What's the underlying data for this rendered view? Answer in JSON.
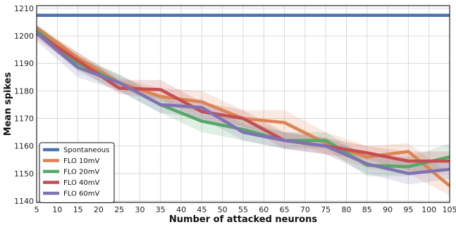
{
  "chart_data": {
    "type": "line",
    "title": "",
    "xlabel": "Number of attacked neurons",
    "ylabel": "Mean spikes",
    "x": [
      5,
      15,
      25,
      35,
      45,
      55,
      65,
      75,
      85,
      95,
      105
    ],
    "xticks": [
      5,
      10,
      15,
      20,
      25,
      30,
      35,
      40,
      45,
      50,
      55,
      60,
      65,
      70,
      75,
      80,
      85,
      90,
      95,
      100,
      105
    ],
    "yticks": [
      1140,
      1150,
      1160,
      1170,
      1180,
      1190,
      1200,
      1210
    ],
    "xlim": [
      5,
      105
    ],
    "ylim": [
      1139.5,
      1211
    ],
    "grid": true,
    "legend_position": "bottom-left",
    "series": [
      {
        "name": "Spontaneous",
        "color": "#4c72b0",
        "values": [
          1207.5,
          1207.5,
          1207.5,
          1207.5,
          1207.5,
          1207.5,
          1207.5,
          1207.5,
          1207.5,
          1207.5,
          1207.5
        ],
        "lower": null,
        "upper": null
      },
      {
        "name": "FLO 10mV",
        "color": "#dd8452",
        "values": [
          1203,
          1192,
          1183,
          1178,
          1176,
          1170,
          1168.5,
          1161,
          1156,
          1158,
          1145.5
        ],
        "lower": [
          1201,
          1189,
          1181,
          1176,
          1172,
          1167,
          1163,
          1157,
          1152,
          1150,
          1142
        ],
        "upper": [
          1204,
          1194,
          1185,
          1181,
          1180,
          1173,
          1173,
          1165,
          1160,
          1161,
          1150
        ]
      },
      {
        "name": "FLO 20mV",
        "color": "#55a868",
        "values": [
          1202,
          1190,
          1183,
          1175,
          1169,
          1166,
          1162,
          1162,
          1153,
          1152.5,
          1156
        ],
        "lower": [
          1200,
          1187,
          1180,
          1172,
          1165,
          1162,
          1159,
          1159,
          1149,
          1149,
          1152
        ],
        "upper": [
          1204,
          1193,
          1186,
          1178,
          1173,
          1170,
          1165,
          1165,
          1156,
          1156,
          1161
        ]
      },
      {
        "name": "FLO 40mV",
        "color": "#c44e52",
        "values": [
          1201,
          1191,
          1181,
          1180.5,
          1172.5,
          1170,
          1162,
          1160,
          1157.5,
          1154.5,
          1154.5
        ],
        "lower": [
          1199,
          1188,
          1179,
          1177,
          1169,
          1167,
          1159,
          1157,
          1155,
          1151,
          1151
        ],
        "upper": [
          1203,
          1194,
          1184,
          1184,
          1176,
          1173,
          1165,
          1163,
          1160,
          1158,
          1158
        ]
      },
      {
        "name": "FLO 60mV",
        "color": "#8172b3",
        "values": [
          1201,
          1188.5,
          1183,
          1175,
          1174,
          1165,
          1162,
          1160,
          1153.5,
          1150,
          1151.5
        ],
        "lower": [
          1198,
          1185,
          1180,
          1172,
          1170,
          1162,
          1159,
          1157,
          1150,
          1146,
          1148
        ],
        "upper": [
          1204,
          1192,
          1186,
          1178,
          1177,
          1168,
          1165,
          1163,
          1157,
          1154,
          1155
        ]
      }
    ]
  }
}
